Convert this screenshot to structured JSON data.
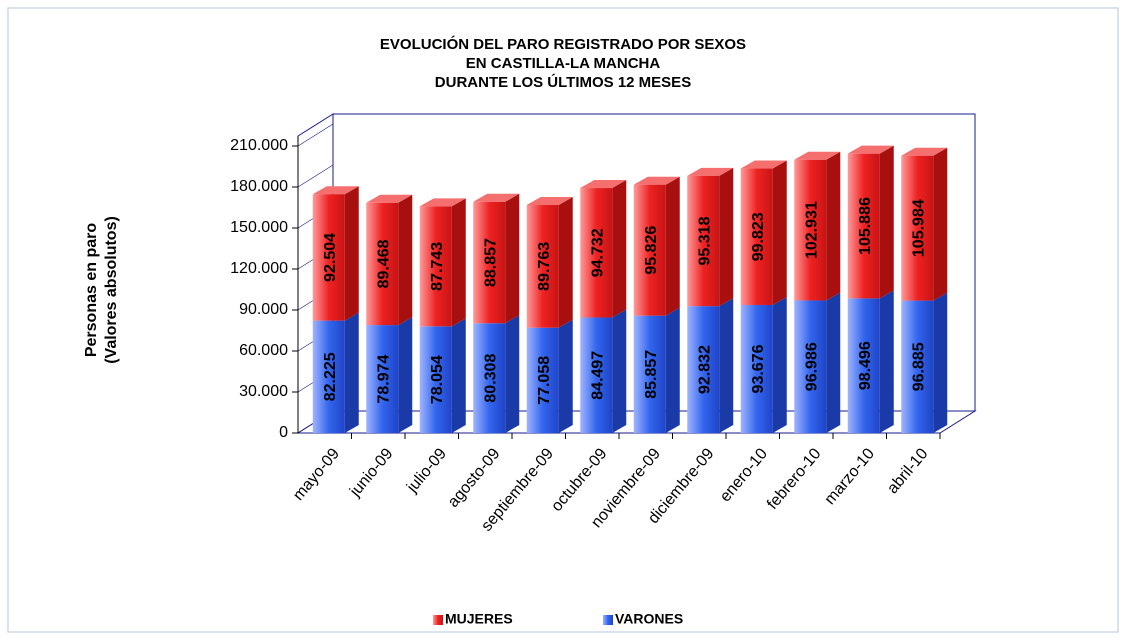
{
  "chart_data": {
    "type": "bar3d_stacked",
    "title": [
      "EVOLUCIÓN DEL PARO REGISTRADO POR SEXOS",
      "EN CASTILLA-LA MANCHA",
      "DURANTE LOS ÚLTIMOS 12 MESES"
    ],
    "y_label": [
      "Personas en paro",
      "(Valores absolutos)"
    ],
    "categories": [
      "mayo-09",
      "junio-09",
      "julio-09",
      "agosto-09",
      "septiembre-09",
      "octubre-09",
      "noviembre-09",
      "diciembre-09",
      "enero-10",
      "febrero-10",
      "marzo-10",
      "abril-10"
    ],
    "series": [
      {
        "name": "VARONES",
        "color": "#3366ee",
        "values": [
          82225,
          78974,
          78054,
          80308,
          77058,
          84497,
          85857,
          92832,
          93676,
          96986,
          98496,
          96885
        ],
        "value_labels": [
          "82.225",
          "78.974",
          "78.054",
          "80.308",
          "77.058",
          "84.497",
          "85.857",
          "92.832",
          "93.676",
          "96.986",
          "98.496",
          "96.885"
        ]
      },
      {
        "name": "MUJERES",
        "color": "#ee2222",
        "values": [
          92504,
          89468,
          87743,
          88857,
          89763,
          94732,
          95826,
          95318,
          99823,
          102931,
          105886,
          105984
        ],
        "value_labels": [
          "92.504",
          "89.468",
          "87.743",
          "88.857",
          "89.763",
          "94.732",
          "95.826",
          "95.318",
          "99.823",
          "102.931",
          "105.886",
          "105.984"
        ]
      }
    ],
    "ylim": [
      0,
      210000
    ],
    "yticks": [
      0,
      {
        "value": 30000,
        "label": "30.000"
      },
      {
        "value": 60000,
        "label": "60.000"
      },
      {
        "value": 90000,
        "label": "90.000"
      },
      {
        "value": 120000,
        "label": "120.000"
      },
      {
        "value": 150000,
        "label": "150.000"
      },
      {
        "value": 180000,
        "label": "180.000"
      },
      {
        "value": 210000,
        "label": "210.000"
      }
    ],
    "legend": "bottom"
  }
}
